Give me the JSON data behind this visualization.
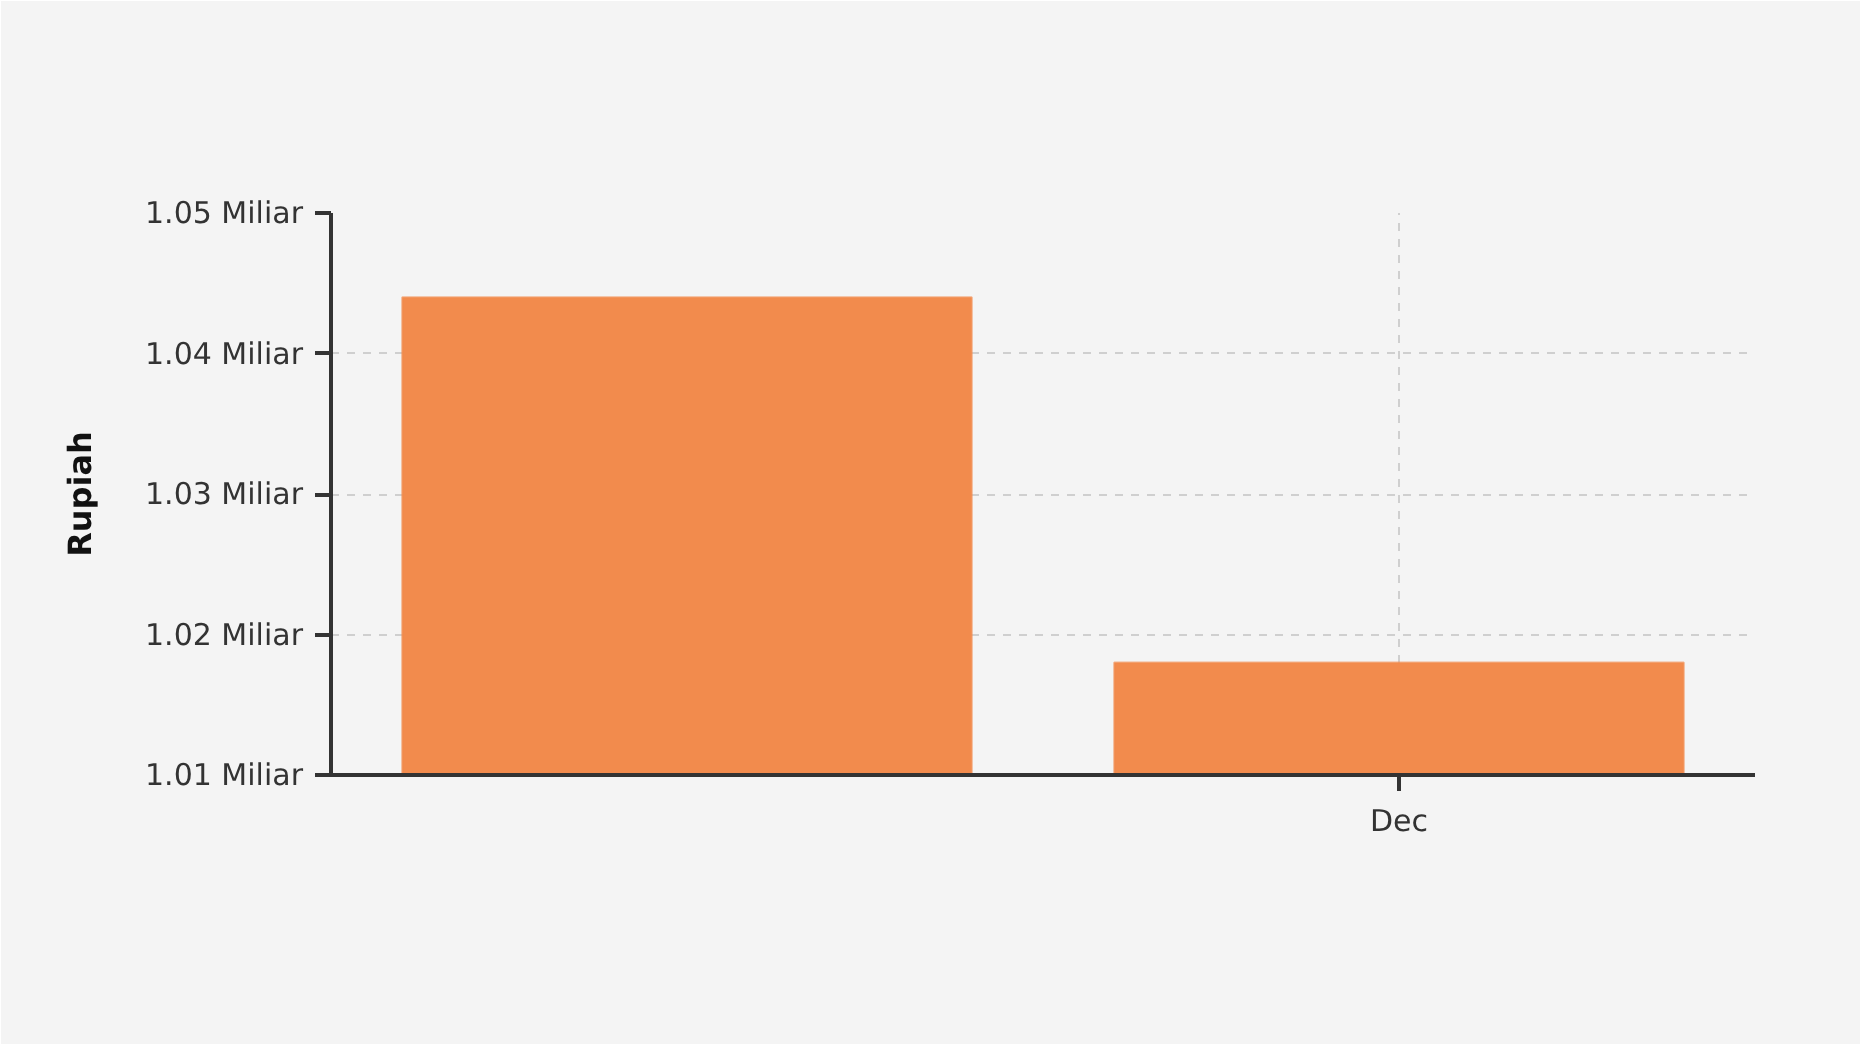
{
  "chart_data": {
    "type": "bar",
    "ylabel": "Rupiah",
    "categories": [
      null,
      "Dec"
    ],
    "values": [
      1.044,
      1.018
    ],
    "color": "#f28b4d",
    "ylim": [
      1.01,
      1.05
    ],
    "yticks": [
      {
        "value": 1.01,
        "label": "1.01 Miliar"
      },
      {
        "value": 1.02,
        "label": "1.02 Miliar"
      },
      {
        "value": 1.03,
        "label": "1.03 Miliar"
      },
      {
        "value": 1.04,
        "label": "1.04 Miliar"
      },
      {
        "value": 1.05,
        "label": "1.05 Miliar"
      }
    ],
    "grid": true
  }
}
